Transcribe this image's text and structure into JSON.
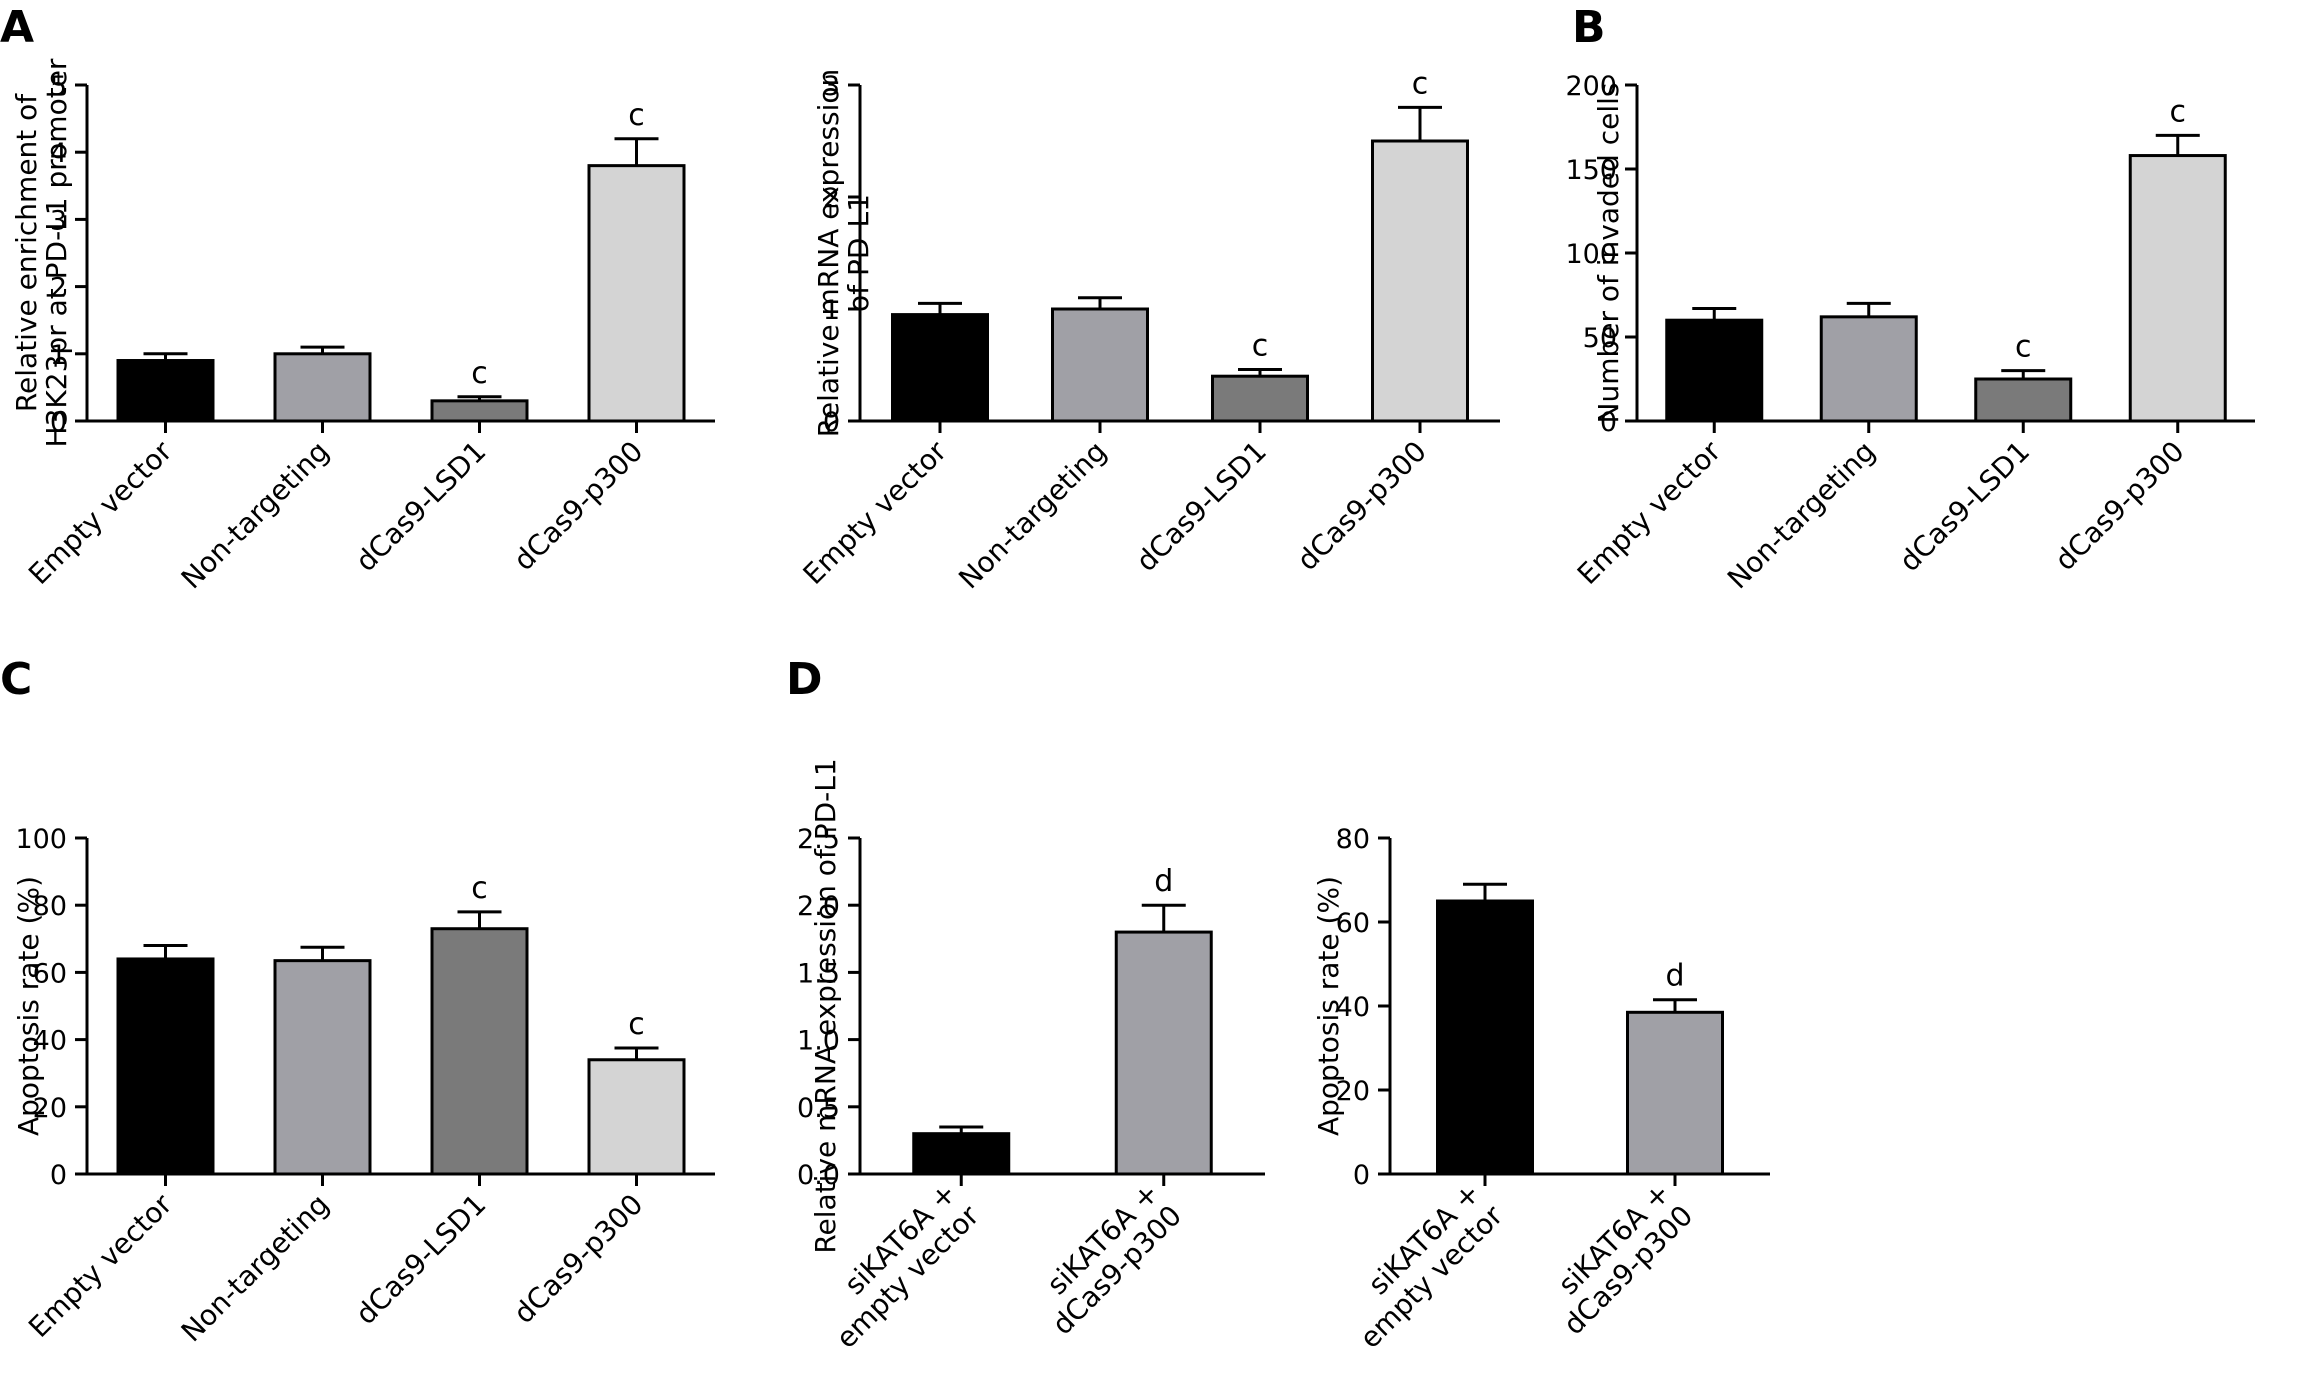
{
  "panel_letters": [
    "A",
    "B",
    "C",
    "D"
  ],
  "chart_data": [
    {
      "type": "bar",
      "categories": [
        "Empty vector",
        "Non-targeting",
        "dCas9-LSD1",
        "dCas9-p300"
      ],
      "values": [
        0.9,
        1.0,
        0.3,
        3.8
      ],
      "errors": [
        0.1,
        0.1,
        0.06,
        0.4
      ],
      "significance": [
        "",
        "",
        "c",
        "c"
      ],
      "colors": [
        "#000000",
        "#a0a0a6",
        "#7a7a7a",
        "#d4d4d4"
      ],
      "ylabel": [
        "Relative enrichment of",
        "H3K23pr at PD-L1 promoter"
      ],
      "ylim": [
        0,
        5
      ],
      "yticks": [
        "0",
        "1",
        "2",
        "3",
        "4",
        "5"
      ]
    },
    {
      "type": "bar",
      "categories": [
        "Empty vector",
        "Non-targeting",
        "dCas9-LSD1",
        "dCas9-p300"
      ],
      "values": [
        0.95,
        1.0,
        0.4,
        2.5
      ],
      "errors": [
        0.1,
        0.1,
        0.06,
        0.3
      ],
      "significance": [
        "",
        "",
        "c",
        "c"
      ],
      "colors": [
        "#000000",
        "#a0a0a6",
        "#7a7a7a",
        "#d4d4d4"
      ],
      "ylabel": [
        "Relative mRNA expression",
        "of PD-L1"
      ],
      "ylim": [
        0,
        3
      ],
      "yticks": [
        "0",
        "1",
        "2",
        "3"
      ]
    },
    {
      "type": "bar",
      "categories": [
        "Empty vector",
        "Non-targeting",
        "dCas9-LSD1",
        "dCas9-p300"
      ],
      "values": [
        60,
        62,
        25,
        158
      ],
      "errors": [
        7,
        8,
        5,
        12
      ],
      "significance": [
        "",
        "",
        "c",
        "c"
      ],
      "colors": [
        "#000000",
        "#a0a0a6",
        "#7a7a7a",
        "#d4d4d4"
      ],
      "ylabel": [
        "Number of invaded cells"
      ],
      "ylim": [
        0,
        200
      ],
      "yticks": [
        "0",
        "50",
        "100",
        "150",
        "200"
      ]
    },
    {
      "type": "bar",
      "categories": [
        "Empty vector",
        "Non-targeting",
        "dCas9-LSD1",
        "dCas9-p300"
      ],
      "values": [
        64,
        63.5,
        73,
        34
      ],
      "errors": [
        4,
        4,
        5,
        3.5
      ],
      "significance": [
        "",
        "",
        "c",
        "c"
      ],
      "colors": [
        "#000000",
        "#a0a0a6",
        "#7a7a7a",
        "#d4d4d4"
      ],
      "ylabel": [
        "Apoptosis rate (%)"
      ],
      "ylim": [
        0,
        100
      ],
      "yticks": [
        "0",
        "20",
        "40",
        "60",
        "80",
        "100"
      ]
    },
    {
      "type": "bar",
      "categories": [
        [
          "siKAT6A +",
          "empty vector"
        ],
        [
          "siKAT6A +",
          "dCas9-p300"
        ]
      ],
      "values": [
        0.3,
        1.8
      ],
      "errors": [
        0.05,
        0.2
      ],
      "significance": [
        "",
        "d"
      ],
      "colors": [
        "#000000",
        "#a0a0a6"
      ],
      "ylabel": [
        "Relative mRNA expression of PD-L1"
      ],
      "ylim": [
        0,
        2.5
      ],
      "yticks": [
        "0.0",
        "0.5",
        "1.0",
        "1.5",
        "2.0",
        "2.5"
      ]
    },
    {
      "type": "bar",
      "categories": [
        [
          "siKAT6A +",
          "empty vector"
        ],
        [
          "siKAT6A +",
          "dCas9-p300"
        ]
      ],
      "values": [
        65,
        38.5
      ],
      "errors": [
        4,
        3
      ],
      "significance": [
        "",
        "d"
      ],
      "colors": [
        "#000000",
        "#a0a0a6"
      ],
      "ylabel": [
        "Apoptosis rate (%)"
      ],
      "ylim": [
        0,
        80
      ],
      "yticks": [
        "0",
        "20",
        "40",
        "60",
        "80"
      ]
    }
  ]
}
